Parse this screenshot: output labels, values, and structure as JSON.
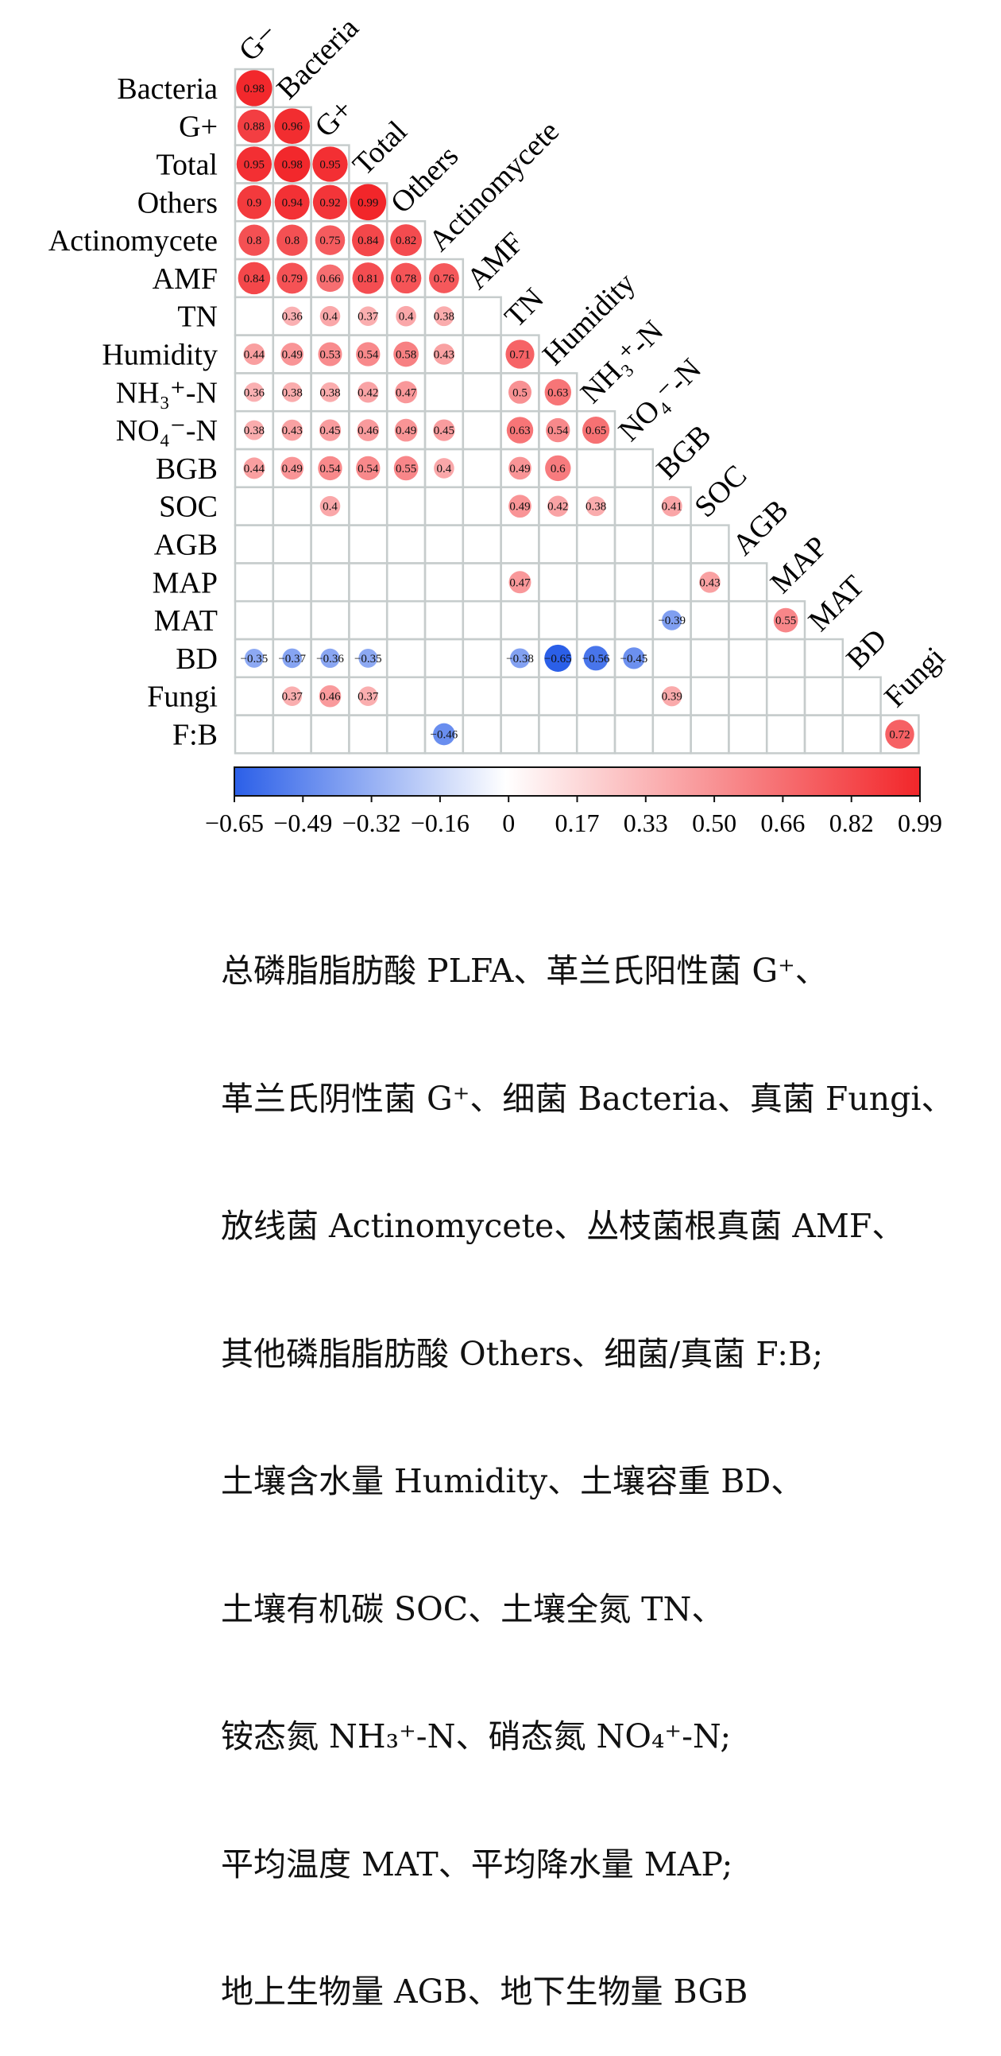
{
  "chart_data": {
    "type": "heatmap",
    "title": "",
    "variables": [
      "G−",
      "Bacteria",
      "G+",
      "Total",
      "Others",
      "Actinomycete",
      "AMF",
      "TN",
      "Humidity",
      "NH₃⁺-N",
      "NO₄⁻-N",
      "BGB",
      "SOC",
      "AGB",
      "MAP",
      "MAT",
      "BD",
      "Fungi",
      "F:B"
    ],
    "row_labels": [
      "Bacteria",
      "G+",
      "Total",
      "Others",
      "Actinomycete",
      "AMF",
      "TN",
      "Humidity",
      "NH₃⁺-N",
      "NO₄⁻-N",
      "BGB",
      "SOC",
      "AGB",
      "MAP",
      "MAT",
      "BD",
      "Fungi",
      "F:B"
    ],
    "column_labels": [
      "G−",
      "Bacteria",
      "G+",
      "Total",
      "Others",
      "Actinomycete",
      "AMF",
      "TN",
      "Humidity",
      "NH₃⁺-N",
      "NO₄⁻-N",
      "BGB",
      "SOC",
      "AGB",
      "MAP",
      "MAT",
      "BD",
      "Fungi"
    ],
    "values": [
      [
        0.98
      ],
      [
        0.88,
        0.96
      ],
      [
        0.95,
        0.98,
        0.95
      ],
      [
        0.9,
        0.94,
        0.92,
        0.99
      ],
      [
        0.8,
        0.8,
        0.75,
        0.84,
        0.82
      ],
      [
        0.84,
        0.79,
        0.66,
        0.81,
        0.78,
        0.76
      ],
      [
        null,
        0.36,
        0.4,
        0.37,
        0.4,
        0.38,
        null
      ],
      [
        0.44,
        0.49,
        0.53,
        0.54,
        0.58,
        0.43,
        null,
        0.71
      ],
      [
        0.36,
        0.38,
        0.38,
        0.42,
        0.47,
        null,
        null,
        0.5,
        0.63
      ],
      [
        0.38,
        0.43,
        0.45,
        0.46,
        0.49,
        0.45,
        null,
        0.63,
        0.54,
        0.65
      ],
      [
        0.44,
        0.49,
        0.54,
        0.54,
        0.55,
        0.4,
        null,
        0.49,
        0.6,
        null,
        null
      ],
      [
        null,
        null,
        0.4,
        null,
        null,
        null,
        null,
        0.49,
        0.42,
        0.38,
        null,
        0.41
      ],
      [
        null,
        null,
        null,
        null,
        null,
        null,
        null,
        null,
        null,
        null,
        null,
        null,
        null
      ],
      [
        null,
        null,
        null,
        null,
        null,
        null,
        null,
        0.47,
        null,
        null,
        null,
        null,
        0.43,
        null
      ],
      [
        null,
        null,
        null,
        null,
        null,
        null,
        null,
        null,
        null,
        null,
        null,
        -0.39,
        null,
        null,
        0.55
      ],
      [
        -0.35,
        -0.37,
        -0.36,
        -0.35,
        null,
        null,
        null,
        -0.38,
        -0.65,
        -0.56,
        -0.45,
        null,
        null,
        null,
        null,
        null
      ],
      [
        null,
        0.37,
        0.46,
        0.37,
        null,
        null,
        null,
        null,
        null,
        null,
        null,
        0.39,
        null,
        null,
        null,
        null,
        null
      ],
      [
        null,
        null,
        null,
        null,
        null,
        -0.46,
        null,
        null,
        null,
        null,
        null,
        null,
        null,
        null,
        null,
        null,
        null,
        0.72
      ]
    ],
    "colorbar": {
      "ticks": [
        "−0.65",
        "−0.49",
        "−0.32",
        "−0.16",
        "0",
        "0.17",
        "0.33",
        "0.50",
        "0.66",
        "0.82",
        "0.99"
      ],
      "min": -0.65,
      "max": 0.99,
      "colors": {
        "negative": "#2b5fe8",
        "zero": "#ffffff",
        "positive": "#f2262a"
      }
    },
    "grid": true,
    "legend": "bottom"
  },
  "caption": {
    "lines": [
      "总磷脂脂肪酸 PLFA、革兰氏阳性菌 G⁺、",
      "革兰氏阴性菌 G⁺、细菌 Bacteria、真菌 Fungi、",
      "放线菌 Actinomycete、丛枝菌根真菌 AMF、",
      "其他磷脂脂肪酸 Others、细菌/真菌 F:B;",
      "土壤含水量 Humidity、土壤容重 BD、",
      "土壤有机碳 SOC、土壤全氮 TN、",
      "铵态氮 NH₃⁺-N、硝态氮 NO₄⁺-N;",
      "平均温度 MAT、平均降水量 MAP;",
      "地上生物量 AGB、地下生物量 BGB"
    ]
  }
}
